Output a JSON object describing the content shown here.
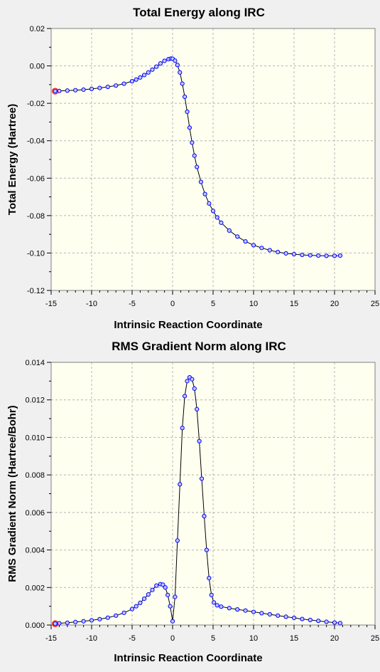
{
  "chart_data": [
    {
      "type": "line",
      "title": "Total Energy along IRC",
      "xlabel": "Intrinsic Reaction Coordinate",
      "ylabel": "Total Energy (Hartree)",
      "xlim": [
        -15,
        25
      ],
      "ylim": [
        -0.12,
        0.02
      ],
      "xticks": [
        -15,
        -10,
        -5,
        0,
        5,
        10,
        15,
        20,
        25
      ],
      "yticks": [
        -0.12,
        -0.1,
        -0.08,
        -0.06,
        -0.04,
        -0.02,
        0.0,
        0.02
      ],
      "ytick_decimals": 2,
      "grid": true,
      "colors": {
        "line": "#000000",
        "marker": "#0000ff",
        "marker_fill": "#c0c8ff",
        "start_marker": "#ff0000",
        "plot_bg": "#fffff0"
      },
      "series": [
        {
          "x": [
            -14.5,
            -14.0,
            -13.0,
            -12.0,
            -11.0,
            -10.0,
            -9.0,
            -8.0,
            -7.0,
            -6.0,
            -5.0,
            -4.5,
            -4.0,
            -3.5,
            -3.0,
            -2.5,
            -2.0,
            -1.5,
            -1.0,
            -0.5,
            -0.2,
            0.0,
            0.3,
            0.6,
            0.9,
            1.2,
            1.5,
            1.8,
            2.1,
            2.4,
            2.7,
            3.0,
            3.5,
            4.0,
            4.5,
            5.0,
            5.5,
            6.0,
            7.0,
            8.0,
            9.0,
            10.0,
            11.0,
            12.0,
            13.0,
            14.0,
            15.0,
            16.0,
            17.0,
            18.0,
            19.0,
            20.0,
            20.7
          ],
          "y": [
            -0.0135,
            -0.0134,
            -0.0132,
            -0.013,
            -0.0127,
            -0.0123,
            -0.0118,
            -0.0112,
            -0.0105,
            -0.0095,
            -0.0082,
            -0.0073,
            -0.0062,
            -0.0049,
            -0.0035,
            -0.002,
            -0.0004,
            0.0013,
            0.0027,
            0.0036,
            0.0039,
            0.0038,
            0.0028,
            0.0005,
            -0.0035,
            -0.0095,
            -0.0165,
            -0.0245,
            -0.033,
            -0.041,
            -0.048,
            -0.054,
            -0.062,
            -0.0685,
            -0.0735,
            -0.0775,
            -0.081,
            -0.0838,
            -0.088,
            -0.0912,
            -0.0938,
            -0.0958,
            -0.0973,
            -0.0985,
            -0.0995,
            -0.1002,
            -0.1006,
            -0.101,
            -0.1012,
            -0.1014,
            -0.1015,
            -0.1015,
            -0.1014
          ]
        }
      ]
    },
    {
      "type": "line",
      "title": "RMS Gradient Norm along IRC",
      "xlabel": "Intrinsic Reaction Coordinate",
      "ylabel": "RMS Gradient Norm (Hartree/Bohr)",
      "xlim": [
        -15,
        25
      ],
      "ylim": [
        0,
        0.014
      ],
      "xticks": [
        -15,
        -10,
        -5,
        0,
        5,
        10,
        15,
        20,
        25
      ],
      "yticks": [
        0.0,
        0.002,
        0.004,
        0.006,
        0.008,
        0.01,
        0.012,
        0.014
      ],
      "ytick_decimals": 3,
      "grid": true,
      "colors": {
        "line": "#000000",
        "marker": "#0000ff",
        "marker_fill": "#c0c8ff",
        "start_marker": "#ff0000",
        "plot_bg": "#fffff0"
      },
      "series": [
        {
          "x": [
            -14.5,
            -14.0,
            -13.0,
            -12.0,
            -11.0,
            -10.0,
            -9.0,
            -8.0,
            -7.0,
            -6.0,
            -5.0,
            -4.5,
            -4.0,
            -3.5,
            -3.0,
            -2.5,
            -2.0,
            -1.5,
            -1.2,
            -0.9,
            -0.6,
            -0.3,
            0.0,
            0.3,
            0.6,
            0.9,
            1.2,
            1.5,
            1.8,
            2.1,
            2.4,
            2.7,
            3.0,
            3.3,
            3.6,
            3.9,
            4.2,
            4.5,
            4.8,
            5.1,
            5.5,
            6.0,
            7.0,
            8.0,
            9.0,
            10.0,
            11.0,
            12.0,
            13.0,
            14.0,
            15.0,
            16.0,
            17.0,
            18.0,
            19.0,
            20.0,
            20.7
          ],
          "y": [
            7e-05,
            9e-05,
            0.00012,
            0.00016,
            0.0002,
            0.00025,
            0.00031,
            0.00039,
            0.0005,
            0.00065,
            0.00085,
            0.001,
            0.00118,
            0.0014,
            0.00163,
            0.00187,
            0.0021,
            0.00218,
            0.00215,
            0.002,
            0.0016,
            0.001,
            0.0002,
            0.0015,
            0.0045,
            0.0075,
            0.0105,
            0.0122,
            0.013,
            0.0132,
            0.0131,
            0.0126,
            0.0115,
            0.0098,
            0.0078,
            0.0058,
            0.004,
            0.0025,
            0.0016,
            0.0012,
            0.00105,
            0.00098,
            0.0009,
            0.00083,
            0.00077,
            0.0007,
            0.00063,
            0.00057,
            0.0005,
            0.00044,
            0.00038,
            0.00032,
            0.00027,
            0.00022,
            0.00017,
            0.00013,
            0.0001
          ]
        }
      ]
    }
  ]
}
